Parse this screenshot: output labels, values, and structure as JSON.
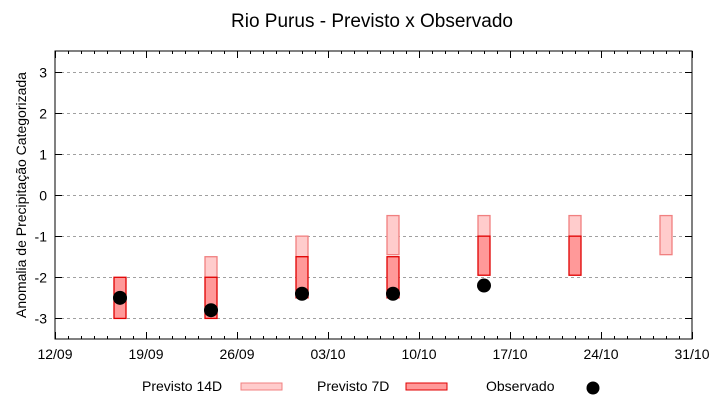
{
  "chart_data": {
    "type": "bar",
    "subtype": "floating-range-bars-with-points",
    "title": "Rio Purus - Previsto x Observado",
    "xlabel": "",
    "ylabel": "Anomalia de Precipitação Categorizada",
    "ylim": [
      -3.5,
      3.5
    ],
    "xlim": [
      "12/09",
      "31/10"
    ],
    "x_ticks": [
      "12/09",
      "19/09",
      "26/09",
      "03/10",
      "10/10",
      "17/10",
      "24/10",
      "31/10"
    ],
    "y_ticks": [
      3,
      2,
      1,
      0,
      -1,
      -2,
      -3
    ],
    "y_tick_labels": [
      "3",
      "2",
      "1",
      "0",
      "-1",
      "-2",
      "-3"
    ],
    "grid": {
      "horizontal": true,
      "vertical": false,
      "style": "dotted"
    },
    "legend_position": "bottom",
    "x_days": [
      5,
      12,
      19,
      26,
      33,
      40,
      47
    ],
    "x": [
      "17/09",
      "24/09",
      "01/10",
      "08/10",
      "15/10",
      "22/10",
      "29/10"
    ],
    "series": [
      {
        "name": "Previsto 14D",
        "kind": "range",
        "color": "#ffcccc",
        "edge": "#f08080",
        "low": [
          null,
          -2.0,
          -1.5,
          -1.45,
          -1.0,
          -1.0,
          -1.45
        ],
        "high": [
          null,
          -1.5,
          -1.0,
          -0.5,
          -0.5,
          -0.5,
          -0.5
        ]
      },
      {
        "name": "Previsto 7D",
        "kind": "range",
        "color": "#ff9999",
        "edge": "#e00000",
        "low": [
          -3.0,
          -3.0,
          -2.5,
          -2.5,
          -1.95,
          -1.95,
          null
        ],
        "high": [
          -2.0,
          -2.0,
          -1.5,
          -1.5,
          -1.0,
          -1.0,
          null
        ]
      },
      {
        "name": "Observado",
        "kind": "point",
        "color": "#000000",
        "values": [
          -2.5,
          -2.8,
          -2.4,
          -2.4,
          -2.2,
          null,
          null
        ]
      }
    ]
  },
  "legend": {
    "items": [
      {
        "label": "Previsto 14D"
      },
      {
        "label": "Previsto 7D"
      },
      {
        "label": "Observado"
      }
    ]
  }
}
